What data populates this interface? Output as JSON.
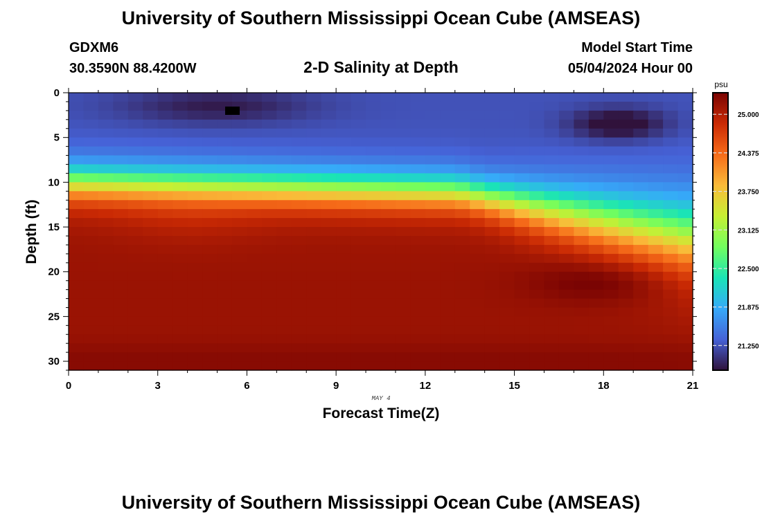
{
  "page": {
    "title": "University of Southern Mississippi Ocean Cube (AMSEAS)",
    "station_id": "GDXM6",
    "location": "30.3590N  88.4200W",
    "plot_title": "2-D Salinity at Depth",
    "model_start_label": "Model Start Time",
    "model_start_value": "05/04/2024 Hour 00",
    "date_label": "MAY 4",
    "footer_title": "University of Southern Mississippi Ocean Cube (AMSEAS)"
  },
  "chart_data": {
    "type": "heatmap",
    "title": "2-D Salinity at Depth",
    "xlabel": "Forecast Time(Z)",
    "ylabel": "Depth (ft)",
    "x_ticks": [
      0,
      3,
      6,
      9,
      12,
      15,
      18,
      21
    ],
    "y_ticks": [
      0,
      5,
      10,
      15,
      20,
      25,
      30
    ],
    "xlim": [
      0,
      21
    ],
    "ylim": [
      0,
      31
    ],
    "colorbar": {
      "unit": "psu",
      "ticks": [
        "25.000",
        "24.375",
        "23.750",
        "23.125",
        "22.500",
        "21.875",
        "21.250"
      ],
      "range": [
        20.85,
        25.35
      ]
    },
    "field_summary": {
      "surface_salinity_psu": 21.0,
      "bottom_salinity_psu": 25.0,
      "halocline_depth_ft_at_hour_0": 10,
      "halocline_depth_ft_at_hour_21": 16,
      "low_salinity_core": {
        "hour": 18.5,
        "depth_ft": 3.5,
        "value_psu": 20.9
      },
      "high_salinity_core": {
        "hour": 18,
        "depth_ft": 21,
        "value_psu": 25.3
      }
    },
    "colors": {
      "frame": "#000000",
      "colorbar_scale": [
        "#30123b",
        "#4662d7",
        "#36aaf9",
        "#1ae4b6",
        "#72fe5e",
        "#c7ef34",
        "#faba39",
        "#f66b19",
        "#ca2a04",
        "#7a0403"
      ]
    }
  }
}
